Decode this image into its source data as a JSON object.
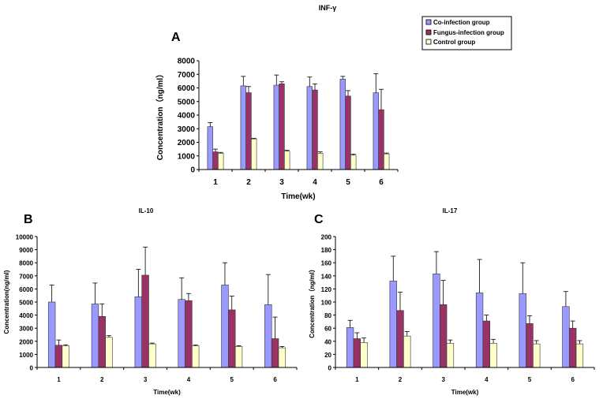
{
  "panel_letters": [
    "A",
    "B",
    "C"
  ],
  "legend": {
    "entries": [
      {
        "label": "Co-infection group",
        "color": "#9999ff"
      },
      {
        "label": "Fungus-infection group",
        "color": "#993366"
      },
      {
        "label": "Control group",
        "color": "#ffffcc"
      }
    ]
  },
  "chart_data": [
    {
      "type": "bar",
      "panel": "A",
      "title": "INF-γ",
      "xlabel": "Time(wk)",
      "ylabel": "Concentration（ng/ml）",
      "categories": [
        "1",
        "2",
        "3",
        "4",
        "5",
        "6"
      ],
      "ylim": [
        0,
        8000
      ],
      "yticks": [
        "0",
        "1000",
        "2000",
        "3000",
        "4000",
        "5000",
        "6000",
        "7000",
        "8000"
      ],
      "series": [
        {
          "name": "Co-infection group",
          "color": "#9999ff",
          "values": [
            3150,
            6150,
            6200,
            6100,
            6650,
            5650
          ],
          "errors": [
            300,
            700,
            750,
            700,
            200,
            1400
          ]
        },
        {
          "name": "Fungus-infection group",
          "color": "#993366",
          "values": [
            1300,
            5650,
            6300,
            5850,
            5400,
            4400
          ],
          "errors": [
            200,
            450,
            150,
            450,
            400,
            1500
          ]
        },
        {
          "name": "Control group",
          "color": "#ffffcc",
          "values": [
            1200,
            2250,
            1350,
            1200,
            1050,
            1150
          ],
          "errors": [
            60,
            50,
            60,
            100,
            80,
            60
          ]
        }
      ]
    },
    {
      "type": "bar",
      "panel": "B",
      "title": "IL-10",
      "xlabel": "Time(wk)",
      "ylabel": "Concentration(ng/ml)",
      "categories": [
        "1",
        "2",
        "3",
        "4",
        "5",
        "6"
      ],
      "ylim": [
        0,
        10000
      ],
      "yticks": [
        "0",
        "1000",
        "2000",
        "3000",
        "4000",
        "5000",
        "6000",
        "7000",
        "8000",
        "9000",
        "10000"
      ],
      "series": [
        {
          "name": "Co-infection group",
          "color": "#9999ff",
          "values": [
            5000,
            4850,
            5400,
            5200,
            6300,
            4800
          ],
          "errors": [
            1300,
            1600,
            2100,
            1650,
            1700,
            2300
          ]
        },
        {
          "name": "Fungus-infection group",
          "color": "#993366",
          "values": [
            1700,
            3900,
            7050,
            5100,
            4400,
            2200
          ],
          "errors": [
            400,
            950,
            2150,
            550,
            1050,
            1650
          ]
        },
        {
          "name": "Control group",
          "color": "#ffffcc",
          "values": [
            1650,
            2300,
            1800,
            1650,
            1600,
            1500
          ],
          "errors": [
            80,
            130,
            60,
            60,
            60,
            100
          ]
        }
      ]
    },
    {
      "type": "bar",
      "panel": "C",
      "title": "IL-17",
      "xlabel": "Time(wk)",
      "ylabel": "Concentration（ng/ml）",
      "categories": [
        "1",
        "2",
        "3",
        "4",
        "5",
        "6"
      ],
      "ylim": [
        0,
        200
      ],
      "yticks": [
        "0",
        "20",
        "40",
        "60",
        "80",
        "100",
        "120",
        "140",
        "160",
        "180",
        "200"
      ],
      "series": [
        {
          "name": "Co-infection group",
          "color": "#9999ff",
          "values": [
            61,
            132,
            143,
            114,
            113,
            93
          ],
          "errors": [
            11,
            38,
            34,
            51,
            47,
            23
          ]
        },
        {
          "name": "Fungus-infection group",
          "color": "#993366",
          "values": [
            44,
            87,
            96,
            71,
            67,
            60
          ],
          "errors": [
            9,
            28,
            37,
            9,
            12,
            11
          ]
        },
        {
          "name": "Control group",
          "color": "#ffffcc",
          "values": [
            38,
            48,
            37,
            37,
            36,
            36
          ],
          "errors": [
            7,
            7,
            5,
            6,
            5,
            5
          ]
        }
      ]
    }
  ]
}
